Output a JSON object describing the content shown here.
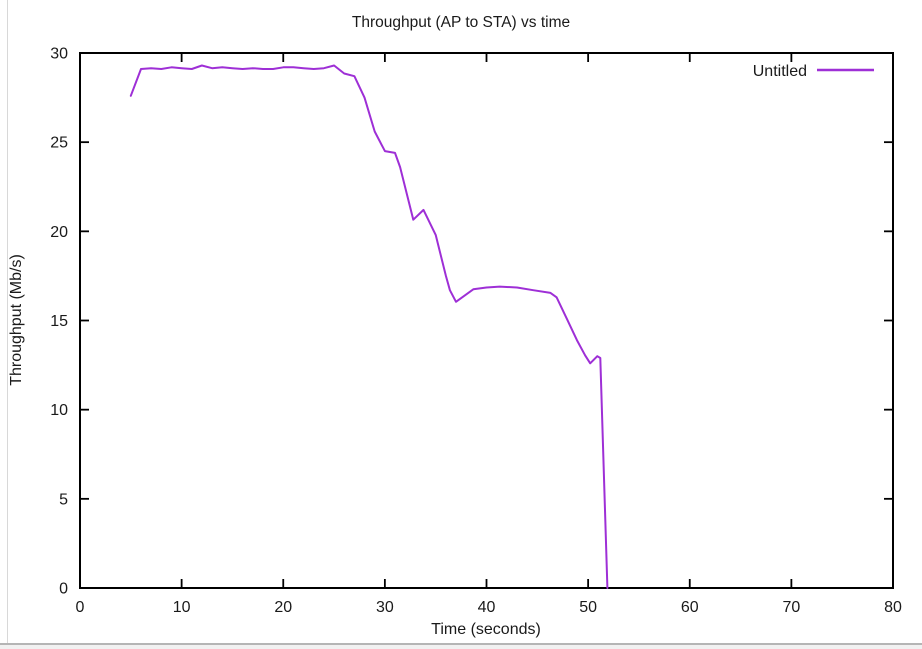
{
  "window": {
    "background": "#ffffff",
    "left_edge_color": "#d8d8d8",
    "bottom_edge_color": "#b5b5b5"
  },
  "chart_data": {
    "type": "line",
    "title": "Throughput (AP to STA) vs time",
    "xlabel": "Time (seconds)",
    "ylabel": "Throughput (Mb/s)",
    "xlim": [
      0,
      80
    ],
    "ylim": [
      0,
      30
    ],
    "xticks": [
      0,
      10,
      20,
      30,
      40,
      50,
      60,
      70,
      80
    ],
    "yticks": [
      0,
      5,
      10,
      15,
      20,
      25,
      30
    ],
    "grid": false,
    "legend_position": "top-right-inside",
    "axis_color": "#000000",
    "text_color": "#1a1a1a",
    "series": [
      {
        "name": "Untitled",
        "color": "#9e2fd6",
        "x": [
          5,
          6,
          7,
          8,
          9,
          10,
          11,
          12,
          13,
          14,
          15,
          16,
          17,
          18,
          19,
          20,
          21,
          22,
          23,
          24,
          25,
          26,
          27,
          28,
          29,
          30,
          31,
          31.5,
          32.8,
          33.8,
          35,
          36,
          36.4,
          37,
          38.7,
          40,
          41.3,
          43,
          44.6,
          46.3,
          46.9,
          47.9,
          48.9,
          49.7,
          50.2,
          50.9,
          51.2,
          51.9
        ],
        "y": [
          27.6,
          29.1,
          29.15,
          29.1,
          29.2,
          29.15,
          29.1,
          29.3,
          29.15,
          29.2,
          29.15,
          29.1,
          29.15,
          29.1,
          29.1,
          29.2,
          29.2,
          29.15,
          29.1,
          29.15,
          29.3,
          28.85,
          28.7,
          27.5,
          25.6,
          24.5,
          24.4,
          23.6,
          20.65,
          21.2,
          19.8,
          17.5,
          16.7,
          16.05,
          16.75,
          16.85,
          16.9,
          16.85,
          16.7,
          16.55,
          16.3,
          15.1,
          13.9,
          13.05,
          12.6,
          13.0,
          12.9,
          0
        ]
      }
    ]
  }
}
